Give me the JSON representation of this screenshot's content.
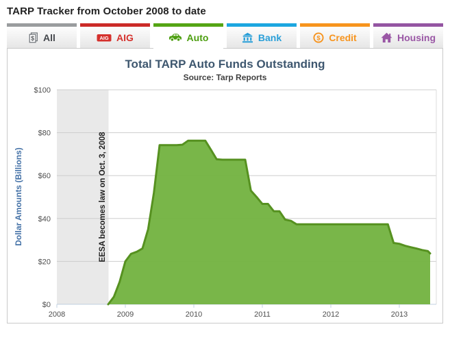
{
  "page": {
    "title": "TARP Tracker from October 2008 to date"
  },
  "tabs": [
    {
      "label": "All",
      "icon": "documents-dollar-icon",
      "color": "#9a9c9e",
      "text_color": "#45484d",
      "active": false
    },
    {
      "label": "AIG",
      "icon": "aig-badge-icon",
      "color": "#cb2a27",
      "text_color": "#d5312d",
      "active": false
    },
    {
      "label": "Auto",
      "icon": "car-icon",
      "color": "#55a514",
      "text_color": "#4c9e0f",
      "active": true
    },
    {
      "label": "Bank",
      "icon": "bank-icon",
      "color": "#1ca6e0",
      "text_color": "#2a9fd8",
      "active": false
    },
    {
      "label": "Credit",
      "icon": "dollar-coin-icon",
      "color": "#f7941d",
      "text_color": "#f7941e",
      "active": false
    },
    {
      "label": "Housing",
      "icon": "house-icon",
      "color": "#9455a2",
      "text_color": "#9a57a5",
      "active": false
    }
  ],
  "chart_data": {
    "type": "area",
    "title": "Total TARP Auto Funds Outstanding",
    "subtitle": "Source: Tarp Reports",
    "ylabel": "Dollar Amounts (Billions)",
    "xlabel": "",
    "xlim": [
      2008,
      2013.54
    ],
    "ylim": [
      0,
      100
    ],
    "grid": true,
    "x_ticks": [
      2008,
      2009,
      2010,
      2011,
      2012,
      2013
    ],
    "x_tick_labels": [
      "2008",
      "2009",
      "2010",
      "2011",
      "2012",
      "2013"
    ],
    "y_ticks": [
      0,
      20,
      40,
      60,
      80,
      100
    ],
    "y_tick_labels": [
      "$0",
      "$20",
      "$40",
      "$60",
      "$80",
      "$100"
    ],
    "plot_band": {
      "from": 2008,
      "to": 2008.755,
      "color": "#e9e9e9",
      "label": "EESA becomes law on Oct. 3, 2008",
      "label_color": "#222222"
    },
    "series": [
      {
        "name": "Total TARP Auto Funds Outstanding ($ Billions)",
        "color": "#72B23F",
        "line_color": "#569120",
        "x": [
          2008.75,
          2008.833,
          2008.917,
          2009.0,
          2009.083,
          2009.167,
          2009.25,
          2009.333,
          2009.417,
          2009.5,
          2009.583,
          2009.667,
          2009.75,
          2009.833,
          2009.917,
          2010.0,
          2010.083,
          2010.167,
          2010.25,
          2010.333,
          2010.417,
          2010.5,
          2010.583,
          2010.667,
          2010.75,
          2010.833,
          2010.917,
          2011.0,
          2011.083,
          2011.167,
          2011.25,
          2011.333,
          2011.417,
          2011.5,
          2011.583,
          2011.667,
          2011.75,
          2011.833,
          2011.917,
          2012.0,
          2012.083,
          2012.167,
          2012.25,
          2012.333,
          2012.417,
          2012.5,
          2012.583,
          2012.667,
          2012.75,
          2012.833,
          2012.917,
          2013.0,
          2013.083,
          2013.167,
          2013.25,
          2013.333,
          2013.417,
          2013.45
        ],
        "y": [
          0,
          3.5,
          10.5,
          20,
          23.5,
          24.5,
          26,
          35,
          52,
          74.2,
          74.2,
          74.2,
          74.2,
          74.4,
          76.3,
          76.3,
          76.3,
          76.3,
          72,
          67.6,
          67.4,
          67.4,
          67.4,
          67.4,
          67.4,
          53,
          50,
          46.8,
          46.8,
          43.4,
          43.4,
          39.5,
          38.9,
          37.3,
          37.3,
          37.3,
          37.3,
          37.3,
          37.3,
          37.3,
          37.3,
          37.3,
          37.3,
          37.3,
          37.3,
          37.3,
          37.3,
          37.3,
          37.3,
          37.3,
          28.6,
          28.2,
          27.3,
          26.6,
          26,
          25.3,
          24.8,
          23.7
        ]
      }
    ],
    "axis_colors": {
      "grid_line": "#cdcdcd",
      "axis_line": "#C0D0E0",
      "tick_label": "#4e4e4e",
      "plot_border_right": "#dcdcdc"
    }
  }
}
